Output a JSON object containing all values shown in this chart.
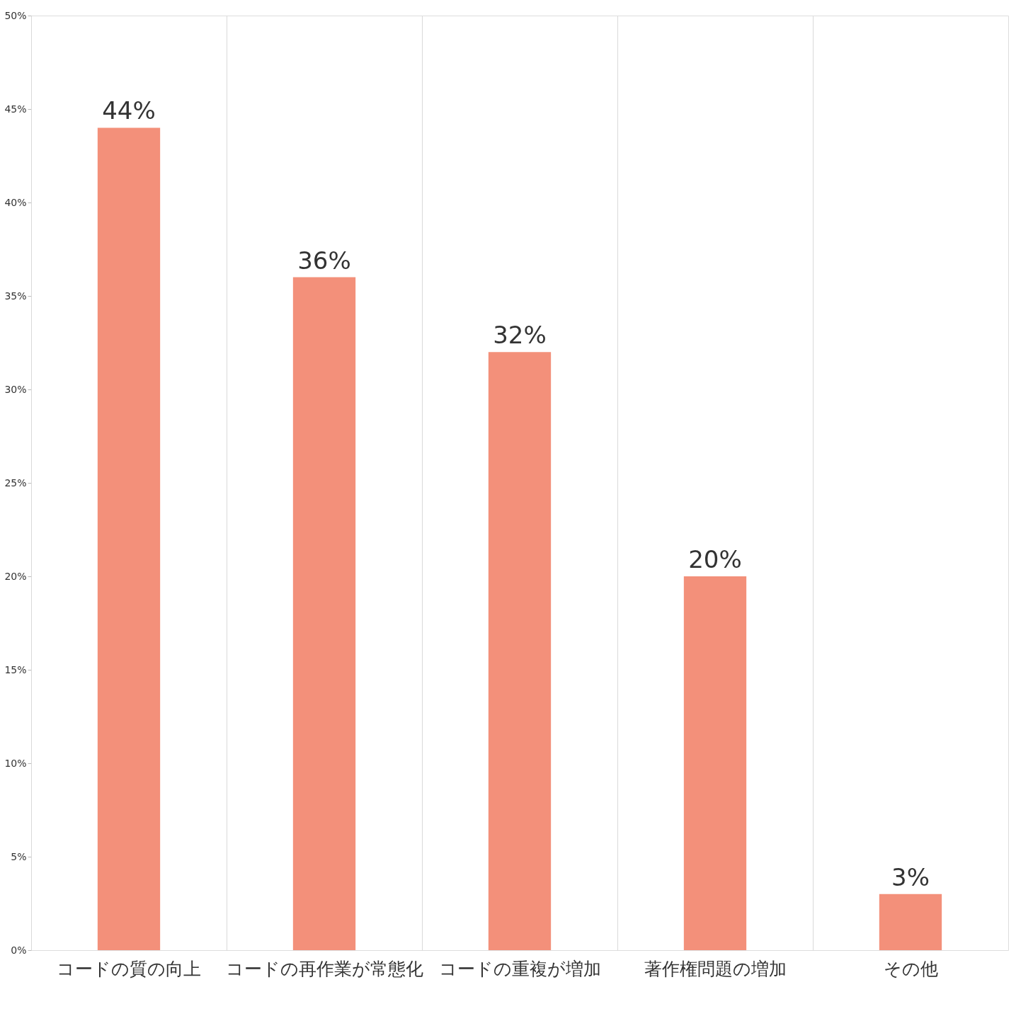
{
  "chart_data": {
    "type": "bar",
    "categories": [
      "コードの質の向上",
      "コードの再作業が常態化",
      "コードの重複が増加",
      "著作権問題の増加",
      "その他"
    ],
    "series": [
      {
        "color": "#f3907a",
        "values": [
          44,
          36,
          32,
          20,
          3
        ],
        "value_labels": [
          "44%",
          "36%",
          "32%",
          "20%",
          "3%"
        ]
      }
    ],
    "ylim": [
      0,
      50
    ],
    "yticks": [
      {
        "value": 0,
        "label": "0%"
      },
      {
        "value": 5,
        "label": "5%"
      },
      {
        "value": 10,
        "label": "10%"
      },
      {
        "value": 15,
        "label": "15%"
      },
      {
        "value": 20,
        "label": "20%"
      },
      {
        "value": 25,
        "label": "25%"
      },
      {
        "value": 30,
        "label": "30%"
      },
      {
        "value": 35,
        "label": "35%"
      },
      {
        "value": 40,
        "label": "40%"
      },
      {
        "value": 45,
        "label": "45%"
      },
      {
        "value": 50,
        "label": "50%"
      }
    ],
    "grid": "x"
  }
}
